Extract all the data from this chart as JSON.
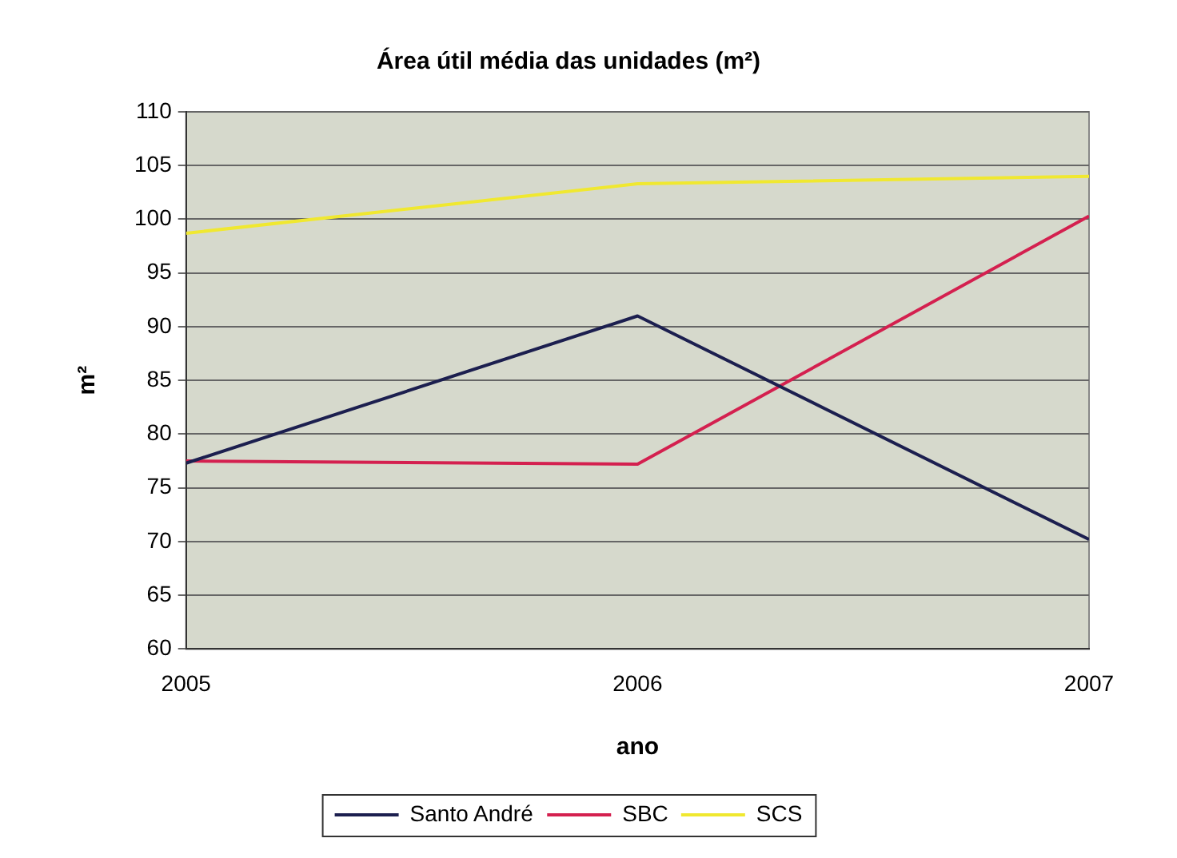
{
  "chart_data": {
    "type": "line",
    "title": "Área útil média das unidades (m²)",
    "xlabel": "ano",
    "ylabel": "m²",
    "x": [
      2005,
      2006,
      2007
    ],
    "xlim": [
      2005,
      2007
    ],
    "xticks": [
      2005,
      2006,
      2007
    ],
    "ylim": [
      60,
      110
    ],
    "yticks": [
      60,
      65,
      70,
      75,
      80,
      85,
      90,
      95,
      100,
      105,
      110
    ],
    "grid": "y",
    "legend": "bottom",
    "marker": "none",
    "line_style": "solid",
    "series": [
      {
        "name": "Santo André",
        "color": "#1c1f4f",
        "values": [
          77.3,
          91,
          70.2
        ]
      },
      {
        "name": "SBC",
        "color": "#d4204f",
        "values": [
          77.5,
          77.2,
          100.3
        ]
      },
      {
        "name": "SCS",
        "color": "#f0e830",
        "values": [
          98.7,
          103.3,
          104
        ]
      }
    ]
  }
}
